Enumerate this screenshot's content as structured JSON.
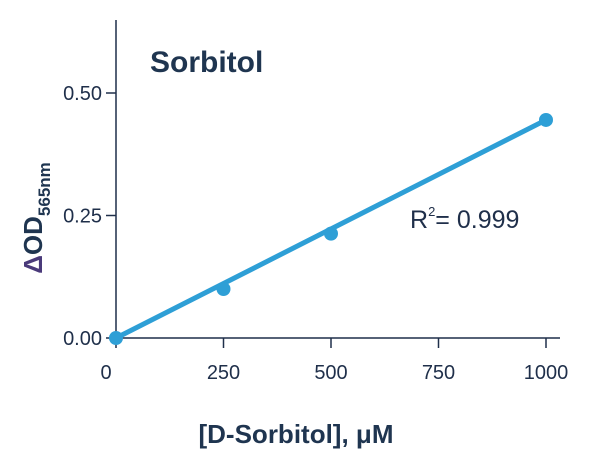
{
  "chart_data": {
    "type": "scatter",
    "title": "Sorbitol",
    "xlabel": "[D-Sorbitol], μM",
    "ylabel": {
      "delta": "Δ",
      "main": "OD",
      "subscript": "565nm"
    },
    "xlim": [
      0,
      1000
    ],
    "ylim": [
      0,
      0.5
    ],
    "x_ticks": [
      {
        "value": 0,
        "label": "0"
      },
      {
        "value": 250,
        "label": "250"
      },
      {
        "value": 500,
        "label": "500"
      },
      {
        "value": 750,
        "label": "750"
      },
      {
        "value": 1000,
        "label": "1000"
      }
    ],
    "y_ticks": [
      {
        "value": 0,
        "label": "0.00"
      },
      {
        "value": 0.25,
        "label": "0.25"
      },
      {
        "value": 0.5,
        "label": "0.50"
      }
    ],
    "series": [
      {
        "x": [
          0,
          250,
          500,
          1000
        ],
        "y": [
          0.0,
          0.1,
          0.213,
          0.445
        ]
      }
    ],
    "fit_line": {
      "x": [
        0,
        1000
      ],
      "y": [
        0.0,
        0.445
      ]
    },
    "annotation": {
      "base": "R",
      "sup": "2",
      "value": "= 0.999"
    },
    "grid": false,
    "colors": {
      "series": "#2e9fd6",
      "axis": "#1f2f4a",
      "title": "#1f3550",
      "delta": "#4a3a7a"
    }
  }
}
